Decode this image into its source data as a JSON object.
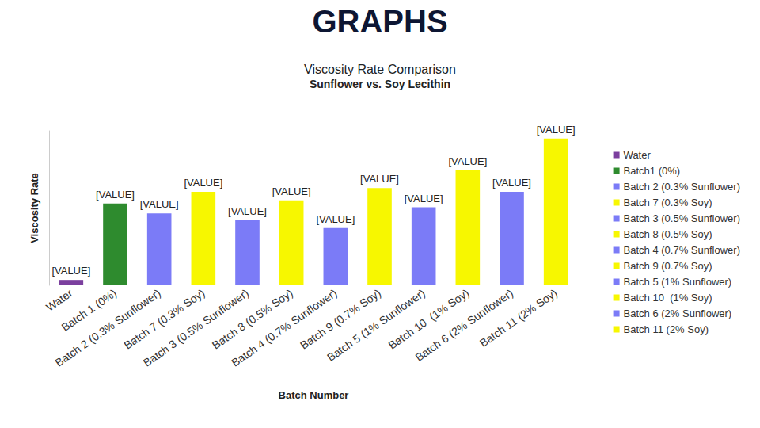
{
  "header": "GRAPHS",
  "chart_data": {
    "type": "bar",
    "title": "Viscosity Rate Comparison",
    "subtitle": "Sunflower vs. Soy Lecithin",
    "x_label": "Batch Number",
    "y_label": "Viscosity Rate",
    "categories": [
      "Water",
      "Batch 1 (0%)",
      "Batch 2 (0.3% Sunflower)",
      "Batch 7 (0.3% Soy)",
      "Batch 3 (0.5% Sunflower)",
      "Batch 8 (0.5% Soy)",
      "Batch 4 (0.7% Sunflower)",
      "Batch 9 (0.7% Soy)",
      "Batch 5 (1% Sunflower)",
      "Batch 10  (1% Soy)",
      "Batch 6 (2% Sunflower)",
      "Batch 11 (2% Soy)"
    ],
    "series": [
      {
        "name": "Water",
        "color": "#7b3f9e",
        "values": [
          7,
          null,
          null,
          null,
          null,
          null,
          null,
          null,
          null,
          null,
          null,
          null
        ],
        "value_labels": [
          "[VALUE]",
          null,
          null,
          null,
          null,
          null,
          null,
          null,
          null,
          null,
          null,
          null
        ]
      },
      {
        "name": "Batch1 (0%)",
        "color": "#2e8b2e",
        "values": [
          null,
          106,
          null,
          null,
          null,
          null,
          null,
          null,
          null,
          null,
          null,
          null
        ],
        "value_labels": [
          null,
          "[VALUE]",
          null,
          null,
          null,
          null,
          null,
          null,
          null,
          null,
          null,
          null
        ]
      },
      {
        "name": "Batch 2 (0.3% Sunflower)",
        "color": "#7b7bf7",
        "values": [
          null,
          null,
          93,
          null,
          null,
          null,
          null,
          null,
          null,
          null,
          null,
          null
        ],
        "value_labels": [
          null,
          null,
          "[VALUE]",
          null,
          null,
          null,
          null,
          null,
          null,
          null,
          null,
          null
        ]
      },
      {
        "name": "Batch 7 (0.3% Soy)",
        "color": "#f7f700",
        "values": [
          null,
          null,
          null,
          121,
          null,
          null,
          null,
          null,
          null,
          null,
          null,
          null
        ],
        "value_labels": [
          null,
          null,
          null,
          "[VALUE]",
          null,
          null,
          null,
          null,
          null,
          null,
          null,
          null
        ]
      },
      {
        "name": "Batch 3 (0.5% Sunflower)",
        "color": "#7b7bf7",
        "values": [
          null,
          null,
          null,
          null,
          84,
          null,
          null,
          null,
          null,
          null,
          null,
          null
        ],
        "value_labels": [
          null,
          null,
          null,
          null,
          "[VALUE]",
          null,
          null,
          null,
          null,
          null,
          null,
          null
        ]
      },
      {
        "name": "Batch 8 (0.5% Soy)",
        "color": "#f7f700",
        "values": [
          null,
          null,
          null,
          null,
          null,
          110,
          null,
          null,
          null,
          null,
          null,
          null
        ],
        "value_labels": [
          null,
          null,
          null,
          null,
          null,
          "[VALUE]",
          null,
          null,
          null,
          null,
          null,
          null
        ]
      },
      {
        "name": "Batch 4 (0.7% Sunflower)",
        "color": "#7b7bf7",
        "values": [
          null,
          null,
          null,
          null,
          null,
          null,
          74,
          null,
          null,
          null,
          null,
          null
        ],
        "value_labels": [
          null,
          null,
          null,
          null,
          null,
          null,
          "[VALUE]",
          null,
          null,
          null,
          null,
          null
        ]
      },
      {
        "name": "Batch 9 (0.7% Soy)",
        "color": "#f7f700",
        "values": [
          null,
          null,
          null,
          null,
          null,
          null,
          null,
          126,
          null,
          null,
          null,
          null
        ],
        "value_labels": [
          null,
          null,
          null,
          null,
          null,
          null,
          null,
          "[VALUE]",
          null,
          null,
          null,
          null
        ]
      },
      {
        "name": "Batch 5 (1% Sunflower)",
        "color": "#7b7bf7",
        "values": [
          null,
          null,
          null,
          null,
          null,
          null,
          null,
          null,
          101,
          null,
          null,
          null
        ],
        "value_labels": [
          null,
          null,
          null,
          null,
          null,
          null,
          null,
          null,
          "[VALUE]",
          null,
          null,
          null
        ]
      },
      {
        "name": "Batch 10  (1% Soy)",
        "color": "#f7f700",
        "values": [
          null,
          null,
          null,
          null,
          null,
          null,
          null,
          null,
          null,
          149,
          null,
          null
        ],
        "value_labels": [
          null,
          null,
          null,
          null,
          null,
          null,
          null,
          null,
          null,
          "[VALUE]",
          null,
          null
        ]
      },
      {
        "name": "Batch 6 (2% Sunflower)",
        "color": "#7b7bf7",
        "values": [
          null,
          null,
          null,
          null,
          null,
          null,
          null,
          null,
          null,
          null,
          121,
          null
        ],
        "value_labels": [
          null,
          null,
          null,
          null,
          null,
          null,
          null,
          null,
          null,
          null,
          "[VALUE]",
          null
        ]
      },
      {
        "name": "Batch 11 (2% Soy)",
        "color": "#f7f700",
        "values": [
          null,
          null,
          null,
          null,
          null,
          null,
          null,
          null,
          null,
          null,
          null,
          190
        ],
        "value_labels": [
          null,
          null,
          null,
          null,
          null,
          null,
          null,
          null,
          null,
          null,
          null,
          "[VALUE]"
        ]
      }
    ],
    "ylim": [
      0,
      200
    ],
    "grid": false,
    "legend": "right",
    "data_labels": true,
    "tick_labels": "x"
  }
}
